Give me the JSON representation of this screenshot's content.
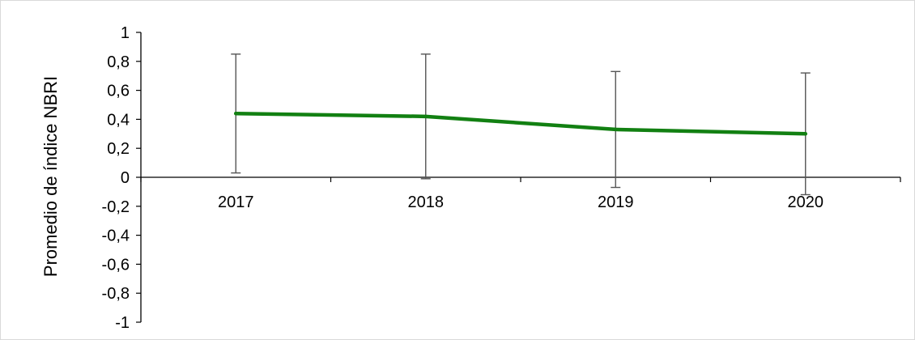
{
  "chart_data": {
    "type": "line",
    "title": "",
    "xlabel": "",
    "ylabel": "Promedio de índice NBRI",
    "categories": [
      "2017",
      "2018",
      "2019",
      "2020"
    ],
    "series": [
      {
        "values": [
          0.44,
          0.42,
          0.33,
          0.3
        ],
        "error_low": [
          0.03,
          -0.01,
          -0.07,
          -0.12
        ],
        "error_high": [
          0.85,
          0.85,
          0.73,
          0.72
        ],
        "color": "#128012"
      }
    ],
    "ylim": [
      -1,
      1
    ],
    "yticks": [
      "1",
      "0,8",
      "0,6",
      "0,4",
      "0,2",
      "0",
      "-0,2",
      "-0,4",
      "-0,6",
      "-0,8",
      "-1"
    ],
    "grid": false,
    "legend": "none"
  }
}
